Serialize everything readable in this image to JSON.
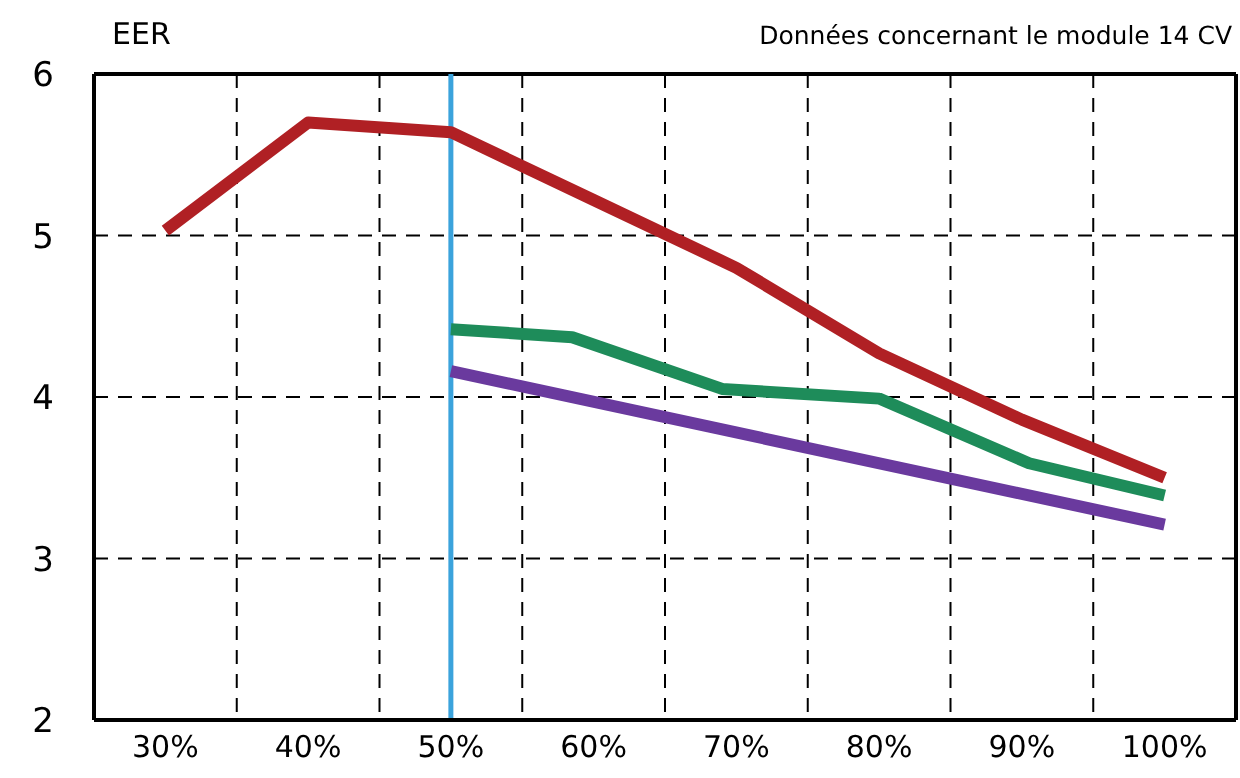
{
  "chart_data": {
    "type": "line",
    "title": "Données concernant le module 14 CV",
    "ylabel": "EER",
    "x": [
      30,
      40,
      50,
      60,
      70,
      80,
      90,
      100
    ],
    "series": [
      {
        "color": "#b02024",
        "values": [
          5.03,
          5.7,
          5.64,
          5.22,
          4.8,
          4.27,
          3.86,
          3.5
        ]
      },
      {
        "color": "#1e8c5a",
        "x": [
          50,
          58.5,
          69,
          80,
          90.5,
          100
        ],
        "values": [
          4.42,
          4.37,
          4.05,
          3.99,
          3.59,
          3.39
        ]
      },
      {
        "color": "#6a3a9e",
        "x": [
          50,
          100
        ],
        "values": [
          4.16,
          3.21
        ]
      }
    ],
    "xlim": [
      25,
      105
    ],
    "xticks": [
      {
        "value": 30,
        "label": "30%"
      },
      {
        "value": 35,
        "label": null
      },
      {
        "value": 40,
        "label": "40%"
      },
      {
        "value": 45,
        "label": null
      },
      {
        "value": 50,
        "label": "50%"
      },
      {
        "value": 55,
        "label": null
      },
      {
        "value": 60,
        "label": "60%"
      },
      {
        "value": 65,
        "label": null
      },
      {
        "value": 70,
        "label": "70%"
      },
      {
        "value": 75,
        "label": null
      },
      {
        "value": 80,
        "label": "80%"
      },
      {
        "value": 85,
        "label": null
      },
      {
        "value": 90,
        "label": "90%"
      },
      {
        "value": 95,
        "label": null
      },
      {
        "value": 100,
        "label": "100%"
      }
    ],
    "ylim": [
      2,
      6
    ],
    "yticks": [
      2,
      3,
      4,
      5,
      6
    ],
    "ref_lines": [
      {
        "axis": "x",
        "value": 50,
        "color": "#3ba3dc"
      }
    ],
    "grid": true,
    "marker": "none",
    "line_style": "solid"
  }
}
